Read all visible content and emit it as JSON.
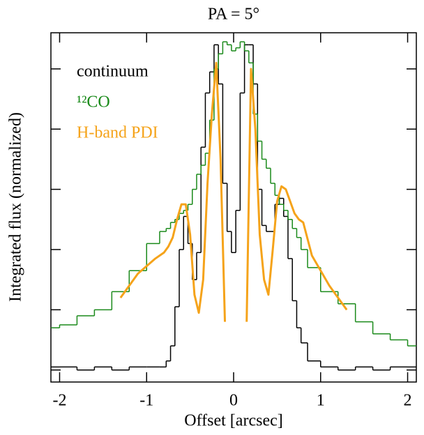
{
  "chart_data": {
    "type": "line",
    "title": "PA = 5°",
    "x_label": "Offset [arcsec]",
    "y_label": "Integrated flux (normalized)",
    "xlim": [
      -2.1,
      2.1
    ],
    "ylim": [
      -0.04,
      1.12
    ],
    "xticks": [
      -2,
      -1,
      0,
      1,
      2
    ],
    "yticks": [
      0,
      0.2,
      0.4,
      0.6,
      0.8,
      1.0
    ],
    "legend": "upper left",
    "x": [
      -2.1,
      -1.9,
      -1.7,
      -1.5,
      -1.3,
      -1.1,
      -0.9,
      -0.8,
      -0.75,
      -0.7,
      -0.65,
      -0.6,
      -0.55,
      -0.5,
      -0.45,
      -0.4,
      -0.35,
      -0.3,
      -0.25,
      -0.2,
      -0.15,
      -0.1,
      -0.05,
      0,
      0.05,
      0.1,
      0.15,
      0.2,
      0.25,
      0.3,
      0.35,
      0.4,
      0.45,
      0.5,
      0.55,
      0.6,
      0.65,
      0.7,
      0.75,
      0.8,
      0.9,
      1.1,
      1.3,
      1.5,
      1.7,
      1.9,
      2.1
    ],
    "series": [
      {
        "name": "continuum",
        "color": "#000000",
        "drawstyle": "steps-mid",
        "width": 1.5,
        "values": [
          0.01,
          0.01,
          0.0,
          0.01,
          0.0,
          0.01,
          0.01,
          0.01,
          0.03,
          0.08,
          0.21,
          0.4,
          0.51,
          0.42,
          0.3,
          0.39,
          0.74,
          0.92,
          0.99,
          1.08,
          0.95,
          0.62,
          0.46,
          0.39,
          0.53,
          0.92,
          1.08,
          1.08,
          0.95,
          0.6,
          0.48,
          0.46,
          0.46,
          0.55,
          0.57,
          0.51,
          0.37,
          0.23,
          0.14,
          0.09,
          0.03,
          0.01,
          0.0,
          0.01,
          0.0,
          0.01,
          0.01
        ]
      },
      {
        "name": "¹²CO",
        "color": "#1a8a1a",
        "drawstyle": "steps-mid",
        "width": 1.5,
        "values": [
          0.14,
          0.15,
          0.18,
          0.2,
          0.26,
          0.33,
          0.42,
          0.46,
          0.47,
          0.49,
          0.5,
          0.52,
          0.53,
          0.55,
          0.6,
          0.65,
          0.68,
          0.72,
          0.83,
          1.0,
          1.05,
          1.09,
          1.08,
          1.06,
          1.07,
          1.09,
          1.06,
          1.02,
          0.85,
          0.76,
          0.7,
          0.67,
          0.62,
          0.58,
          0.55,
          0.53,
          0.5,
          0.47,
          0.44,
          0.4,
          0.34,
          0.26,
          0.22,
          0.16,
          0.12,
          0.1,
          0.08
        ]
      },
      {
        "name": "H-band PDI",
        "color": "#f5a31a",
        "drawstyle": "default",
        "width": 3,
        "values": [
          null,
          null,
          null,
          null,
          0.24,
          0.32,
          0.37,
          0.39,
          0.41,
          0.44,
          0.5,
          0.55,
          0.55,
          0.45,
          0.25,
          0.19,
          0.3,
          0.62,
          0.85,
          1.02,
          0.7,
          0.16,
          null,
          null,
          null,
          null,
          0.16,
          1.0,
          0.8,
          0.45,
          0.3,
          0.25,
          0.4,
          0.56,
          0.61,
          0.6,
          0.56,
          0.52,
          0.5,
          0.49,
          0.38,
          0.28,
          0.2,
          null,
          null,
          null,
          null
        ]
      }
    ]
  }
}
